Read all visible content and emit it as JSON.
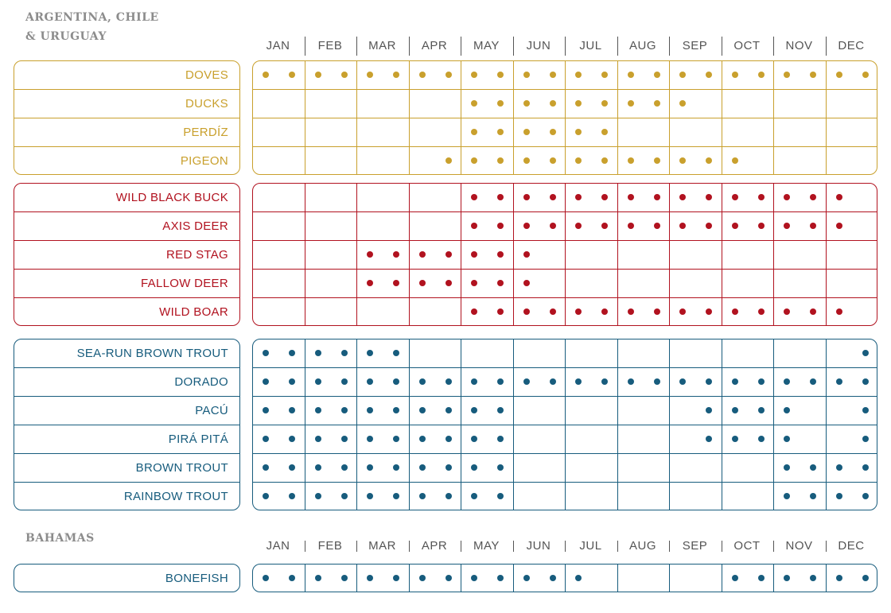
{
  "regions": [
    {
      "title_lines": [
        "ARGENTINA, CHILE",
        "& URUGUAY"
      ],
      "months": [
        "JAN",
        "FEB",
        "MAR",
        "APR",
        "MAY",
        "JUN",
        "JUL",
        "AUG",
        "SEP",
        "OCT",
        "NOV",
        "DEC"
      ],
      "groups": [
        {
          "name": "birds",
          "color": "#c9a02d",
          "rows": [
            {
              "label": "DOVES",
              "slots": [
                1,
                1,
                1,
                1,
                1,
                1,
                1,
                1,
                1,
                1,
                1,
                1,
                1,
                1,
                1,
                1,
                1,
                1,
                1,
                1,
                1,
                1,
                1,
                1
              ]
            },
            {
              "label": "DUCKS",
              "slots": [
                0,
                0,
                0,
                0,
                0,
                0,
                0,
                0,
                1,
                1,
                1,
                1,
                1,
                1,
                1,
                1,
                1,
                0,
                0,
                0,
                0,
                0,
                0,
                0
              ]
            },
            {
              "label": "PERDÍZ",
              "slots": [
                0,
                0,
                0,
                0,
                0,
                0,
                0,
                0,
                1,
                1,
                1,
                1,
                1,
                1,
                0,
                0,
                0,
                0,
                0,
                0,
                0,
                0,
                0,
                0
              ]
            },
            {
              "label": "PIGEON",
              "slots": [
                0,
                0,
                0,
                0,
                0,
                0,
                0,
                1,
                1,
                1,
                1,
                1,
                1,
                1,
                1,
                1,
                1,
                1,
                1,
                0,
                0,
                0,
                0,
                0
              ]
            }
          ]
        },
        {
          "name": "big-game",
          "color": "#b1121f",
          "rows": [
            {
              "label": "WILD BLACK BUCK",
              "slots": [
                0,
                0,
                0,
                0,
                0,
                0,
                0,
                0,
                1,
                1,
                1,
                1,
                1,
                1,
                1,
                1,
                1,
                1,
                1,
                1,
                1,
                1,
                1,
                0
              ]
            },
            {
              "label": "AXIS DEER",
              "slots": [
                0,
                0,
                0,
                0,
                0,
                0,
                0,
                0,
                1,
                1,
                1,
                1,
                1,
                1,
                1,
                1,
                1,
                1,
                1,
                1,
                1,
                1,
                1,
                0
              ]
            },
            {
              "label": "RED STAG",
              "slots": [
                0,
                0,
                0,
                0,
                1,
                1,
                1,
                1,
                1,
                1,
                1,
                0,
                0,
                0,
                0,
                0,
                0,
                0,
                0,
                0,
                0,
                0,
                0,
                0
              ]
            },
            {
              "label": "FALLOW DEER",
              "slots": [
                0,
                0,
                0,
                0,
                1,
                1,
                1,
                1,
                1,
                1,
                1,
                0,
                0,
                0,
                0,
                0,
                0,
                0,
                0,
                0,
                0,
                0,
                0,
                0
              ]
            },
            {
              "label": "WILD BOAR",
              "slots": [
                0,
                0,
                0,
                0,
                0,
                0,
                0,
                0,
                1,
                1,
                1,
                1,
                1,
                1,
                1,
                1,
                1,
                1,
                1,
                1,
                1,
                1,
                1,
                0
              ]
            }
          ]
        },
        {
          "name": "fishing",
          "color": "#175c7d",
          "rows": [
            {
              "label": "SEA-RUN BROWN TROUT",
              "slots": [
                1,
                1,
                1,
                1,
                1,
                1,
                0,
                0,
                0,
                0,
                0,
                0,
                0,
                0,
                0,
                0,
                0,
                0,
                0,
                0,
                0,
                0,
                0,
                1
              ]
            },
            {
              "label": "DORADO",
              "slots": [
                1,
                1,
                1,
                1,
                1,
                1,
                1,
                1,
                1,
                1,
                1,
                1,
                1,
                1,
                1,
                1,
                1,
                1,
                1,
                1,
                1,
                1,
                1,
                1
              ]
            },
            {
              "label": "PACÚ",
              "slots": [
                1,
                1,
                1,
                1,
                1,
                1,
                1,
                1,
                1,
                1,
                0,
                0,
                0,
                0,
                0,
                0,
                0,
                1,
                1,
                1,
                1,
                0,
                0,
                1
              ]
            },
            {
              "label": "PIRÁ PITÁ",
              "slots": [
                1,
                1,
                1,
                1,
                1,
                1,
                1,
                1,
                1,
                1,
                0,
                0,
                0,
                0,
                0,
                0,
                0,
                1,
                1,
                1,
                1,
                0,
                0,
                1
              ]
            },
            {
              "label": "BROWN TROUT",
              "slots": [
                1,
                1,
                1,
                1,
                1,
                1,
                1,
                1,
                1,
                1,
                0,
                0,
                0,
                0,
                0,
                0,
                0,
                0,
                0,
                0,
                1,
                1,
                1,
                1
              ]
            },
            {
              "label": "RAINBOW TROUT",
              "slots": [
                1,
                1,
                1,
                1,
                1,
                1,
                1,
                1,
                1,
                1,
                0,
                0,
                0,
                0,
                0,
                0,
                0,
                0,
                0,
                0,
                1,
                1,
                1,
                1
              ]
            }
          ]
        }
      ]
    },
    {
      "title_lines": [
        "BAHAMAS"
      ],
      "months": [
        "JAN",
        "FEB",
        "MAR",
        "APR",
        "MAY",
        "JUN",
        "JUL",
        "AUG",
        "SEP",
        "OCT",
        "NOV",
        "DEC"
      ],
      "groups": [
        {
          "name": "bahamas-fishing",
          "color": "#175c7d",
          "rows": [
            {
              "label": "BONEFISH",
              "slots": [
                1,
                1,
                1,
                1,
                1,
                1,
                1,
                1,
                1,
                1,
                1,
                1,
                1,
                0,
                0,
                0,
                0,
                0,
                1,
                1,
                1,
                1,
                1,
                1
              ]
            }
          ]
        }
      ]
    }
  ]
}
